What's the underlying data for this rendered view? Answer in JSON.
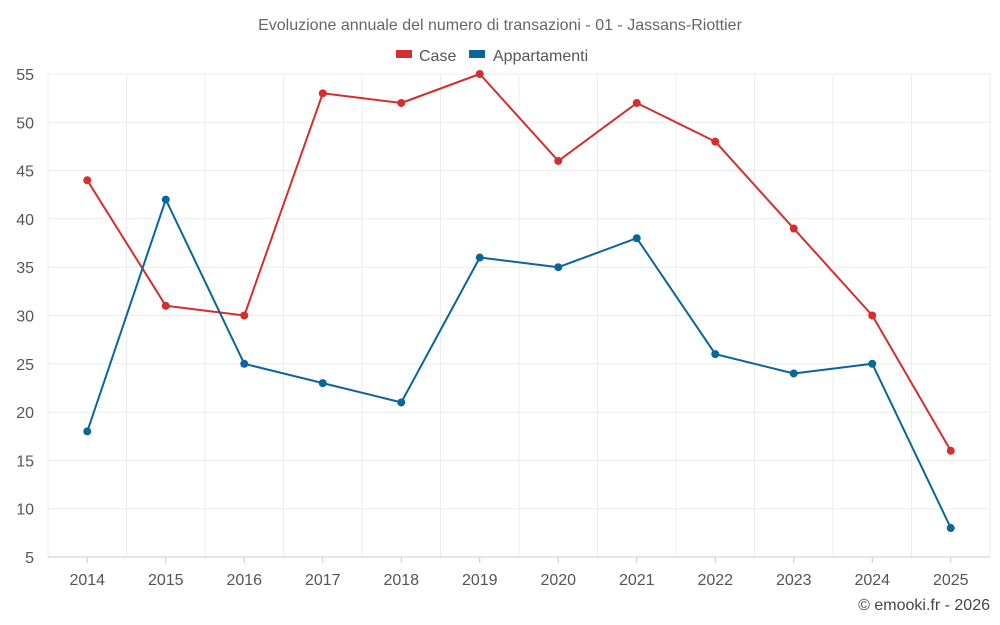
{
  "chart_data": {
    "type": "line",
    "title": "Evoluzione annuale del numero di transazioni - 01 - Jassans-Riottier",
    "categories": [
      "2014",
      "2015",
      "2016",
      "2017",
      "2018",
      "2019",
      "2020",
      "2021",
      "2022",
      "2023",
      "2024",
      "2025"
    ],
    "series": [
      {
        "name": "Case",
        "color": "#d32f2f",
        "values": [
          44,
          31,
          30,
          53,
          52,
          55,
          46,
          52,
          48,
          39,
          30,
          16
        ]
      },
      {
        "name": "Appartamenti",
        "color": "#0a6699",
        "values": [
          18,
          42,
          25,
          23,
          21,
          36,
          35,
          38,
          26,
          24,
          25,
          8
        ]
      }
    ],
    "ylim": [
      5,
      55
    ],
    "yticks": [
      5,
      10,
      15,
      20,
      25,
      30,
      35,
      40,
      45,
      50,
      55
    ],
    "grid": true,
    "legend_position": "top-center",
    "xlabel": "",
    "ylabel": ""
  },
  "credit": "© emooki.fr - 2026"
}
